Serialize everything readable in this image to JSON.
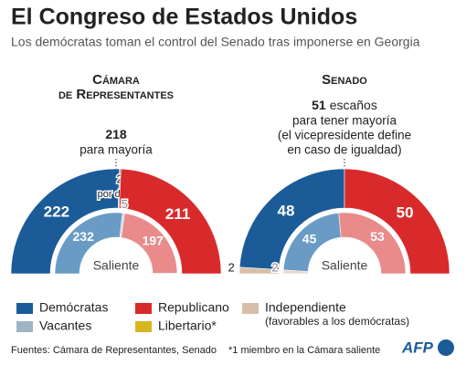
{
  "title": "El Congreso de Estados Unidos",
  "subtitle": "Los demócratas toman el control del Senado tras imponerse en Georgia",
  "chart_data": [
    {
      "type": "half-donut",
      "title_lines": [
        "Cámara",
        "de Representantes"
      ],
      "majority": 218,
      "majority_lines": [
        "para mayoría"
      ],
      "center_label": "Saliente",
      "note": "por definir",
      "rings": [
        {
          "values": [
            222,
            2,
            211
          ],
          "colors": [
            "#1b5b98",
            "#9fb4c4",
            "#d92a2b"
          ],
          "labeled": [
            true,
            true,
            true
          ]
        },
        {
          "values": [
            232,
            5,
            197,
            1
          ],
          "colors": [
            "#6a9bc5",
            "#c9d6df",
            "#e98b8b",
            "#d8b620"
          ],
          "labeled": [
            true,
            true,
            true,
            false
          ]
        }
      ]
    },
    {
      "type": "half-donut",
      "title_lines": [
        "Senado"
      ],
      "majority": 51,
      "majority_unit": "escaños",
      "majority_lines": [
        "para tener mayoría",
        "(el vicepresidente define",
        "en caso de igualdad)"
      ],
      "center_label": "Saliente",
      "rings": [
        {
          "values": [
            2,
            48,
            50
          ],
          "colors": [
            "#d6bfa8",
            "#1b5b98",
            "#d92a2b"
          ],
          "labeled": [
            true,
            true,
            true
          ]
        },
        {
          "values": [
            2,
            45,
            53
          ],
          "colors": [
            "#e6d8ca",
            "#6a9bc5",
            "#e98b8b"
          ],
          "labeled": [
            true,
            true,
            true
          ]
        }
      ]
    }
  ],
  "legend": [
    {
      "name": "Demócratas",
      "color": "#1b5b98"
    },
    {
      "name": "Republicano",
      "color": "#d92a2b"
    },
    {
      "name": "Independiente",
      "color": "#d6bfa8",
      "note": "(favorables a los demócratas)"
    },
    {
      "name": "Vacantes",
      "color": "#9fb4c4"
    },
    {
      "name": "Libertario*",
      "color": "#d8b620"
    }
  ],
  "footer": {
    "source": "Fuentes: Cámara de Representantes, Senado",
    "footnote": "*1 miembro en la Cámara saliente",
    "logo": "AFP"
  }
}
